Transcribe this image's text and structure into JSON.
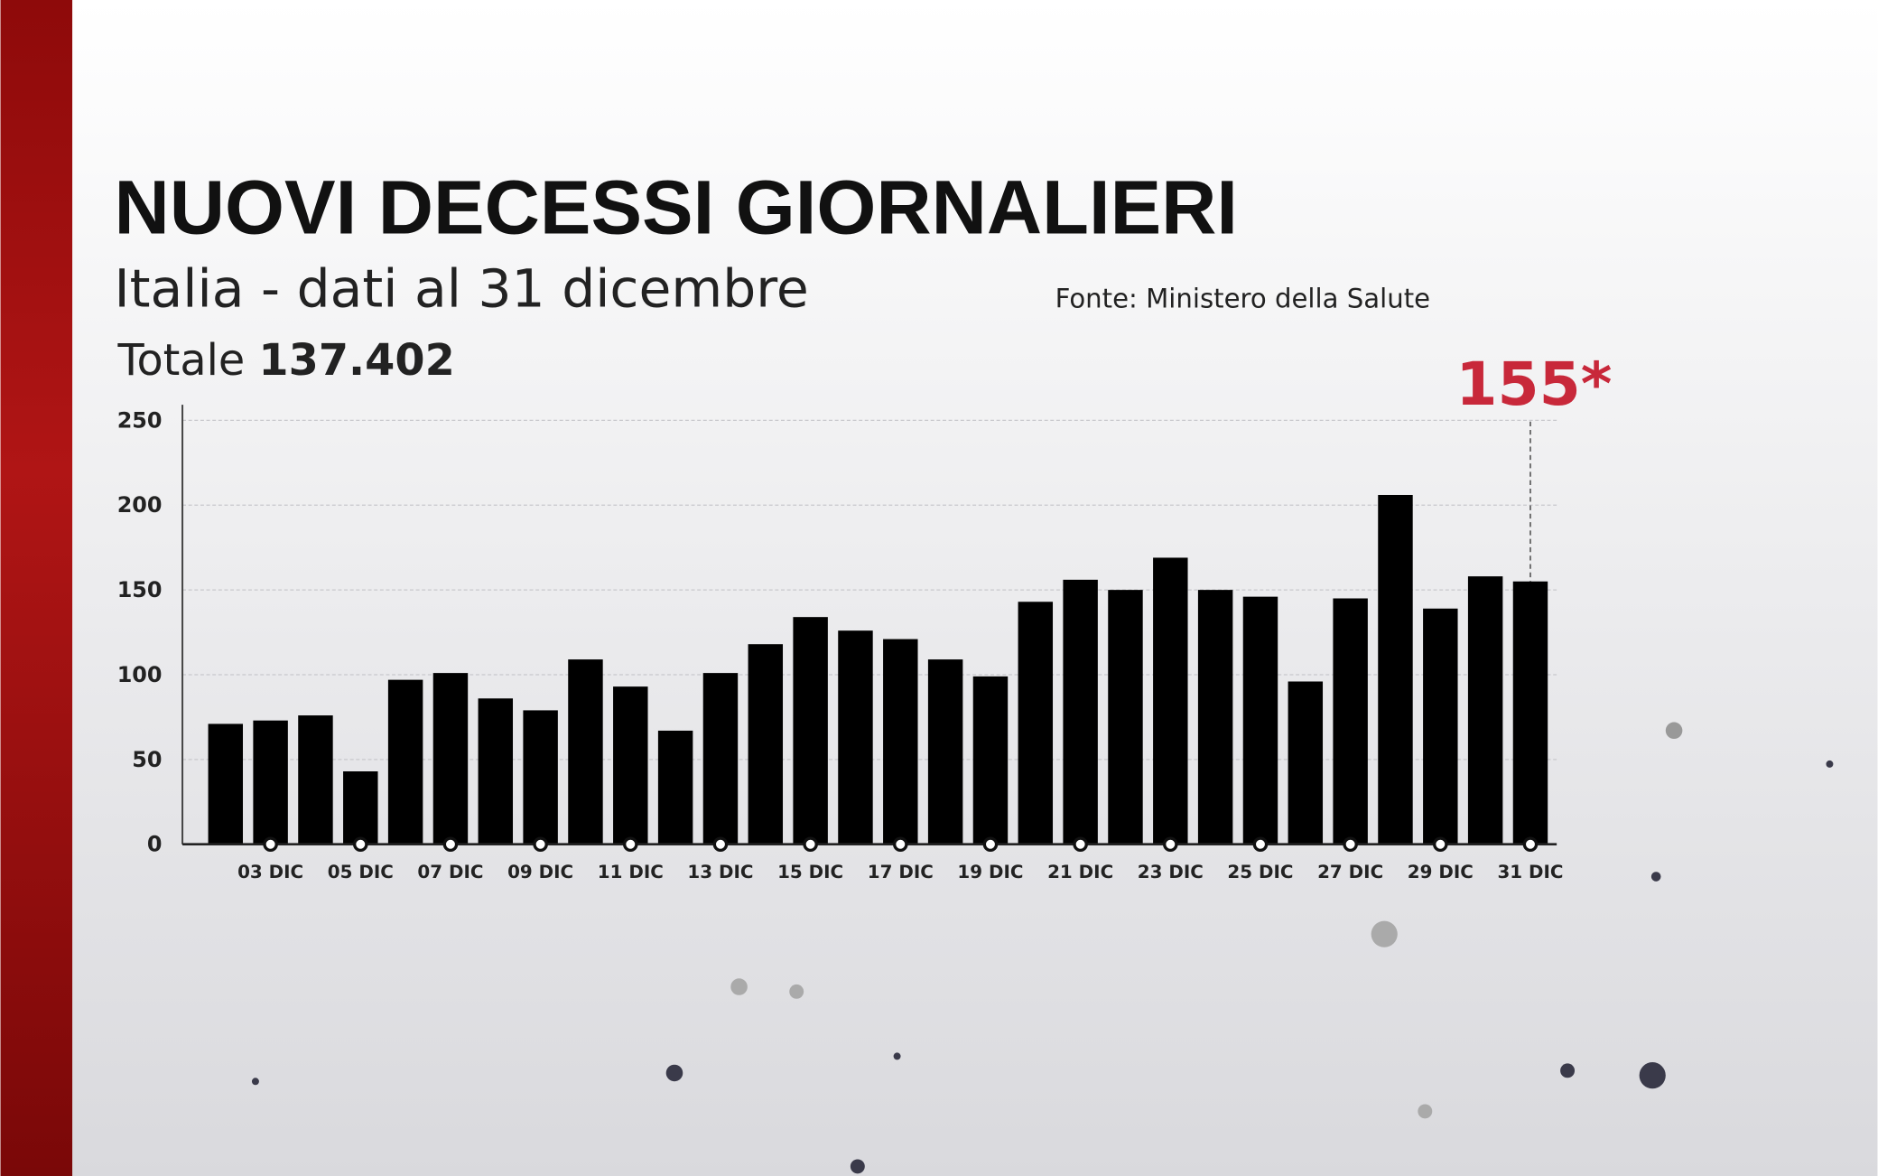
{
  "chart_data": {
    "type": "bar",
    "title": "NUOVI DECESSI GIORNALIERI",
    "subtitle": "Italia - dati al 31 dicembre",
    "source": "Fonte: Ministero della Salute",
    "total_label": "Totale",
    "total_value": "137.402",
    "categories": [
      null,
      "03 DIC",
      null,
      "05 DIC",
      null,
      "07 DIC",
      null,
      "09 DIC",
      null,
      "11 DIC",
      null,
      "13 DIC",
      null,
      "15 DIC",
      null,
      "17 DIC",
      null,
      "19 DIC",
      null,
      "21 DIC",
      null,
      "23 DIC",
      null,
      "25 DIC",
      null,
      "27 DIC",
      null,
      "29 DIC",
      null,
      "31 DIC"
    ],
    "values": [
      71,
      73,
      76,
      43,
      97,
      101,
      86,
      79,
      109,
      93,
      67,
      101,
      118,
      134,
      126,
      121,
      109,
      99,
      143,
      156,
      150,
      169,
      150,
      146,
      96,
      145,
      206,
      139,
      158,
      155
    ],
    "value_labels": [
      null,
      null,
      null,
      null,
      null,
      null,
      null,
      null,
      null,
      null,
      null,
      null,
      null,
      null,
      null,
      null,
      null,
      null,
      null,
      null,
      null,
      null,
      null,
      null,
      null,
      null,
      null,
      null,
      null,
      "155*"
    ],
    "color": "#000000",
    "highlight_color": "#c8283a",
    "ylim": [
      0,
      250
    ],
    "yticks": [
      0,
      50,
      100,
      150,
      200,
      250
    ],
    "grid": true
  }
}
